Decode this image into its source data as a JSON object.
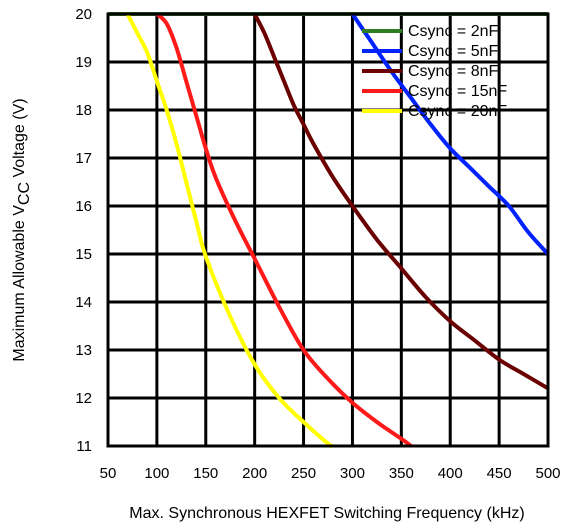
{
  "chart_data": {
    "type": "line",
    "title": "",
    "xlabel": "Max. Synchronous HEXFET Switching Frequency (kHz)",
    "ylabel_main": "Maximum Allowable V",
    "ylabel_sub": "CC",
    "ylabel_tail": " Voltage (V)",
    "xlim": [
      50,
      500
    ],
    "ylim": [
      11,
      20
    ],
    "xticks": [
      50,
      100,
      150,
      200,
      250,
      300,
      350,
      400,
      450,
      500
    ],
    "yticks": [
      11,
      12,
      13,
      14,
      15,
      16,
      17,
      18,
      19,
      20
    ],
    "grid": true,
    "legend_position": "top-right",
    "series": [
      {
        "name": "Csync = 2nF",
        "color": "#2e7d1f",
        "x": [
          50,
          100,
          200,
          300,
          400,
          500
        ],
        "y": [
          20,
          20,
          20,
          20,
          20,
          20
        ]
      },
      {
        "name": "Csync = 5nF",
        "color": "#0022ff",
        "x": [
          300,
          320,
          340,
          360,
          380,
          400,
          420,
          440,
          460,
          480,
          500
        ],
        "y": [
          20,
          19.4,
          18.8,
          18.25,
          17.7,
          17.2,
          16.8,
          16.4,
          16.0,
          15.45,
          15.0
        ]
      },
      {
        "name": "Csync = 8nF",
        "color": "#6b0000",
        "x": [
          200,
          210,
          220,
          230,
          240,
          250,
          260,
          280,
          300,
          325,
          350,
          375,
          400,
          425,
          450,
          475,
          500
        ],
        "y": [
          20,
          19.6,
          19.1,
          18.6,
          18.1,
          17.7,
          17.3,
          16.6,
          16.0,
          15.3,
          14.7,
          14.1,
          13.6,
          13.2,
          12.8,
          12.5,
          12.2
        ]
      },
      {
        "name": "Csync = 15nF",
        "color": "#ff1a1a",
        "x": [
          100,
          110,
          120,
          130,
          140,
          150,
          160,
          180,
          200,
          225,
          250,
          275,
          300,
          325,
          350,
          360
        ],
        "y": [
          20,
          19.8,
          19.3,
          18.6,
          17.9,
          17.2,
          16.6,
          15.7,
          14.9,
          13.9,
          13.0,
          12.4,
          11.9,
          11.5,
          11.15,
          11.0
        ]
      },
      {
        "name": "Csync = 20nF",
        "color": "#ffff00",
        "x": [
          70,
          80,
          90,
          100,
          110,
          120,
          130,
          140,
          150,
          175,
          200,
          225,
          250,
          275,
          280
        ],
        "y": [
          20,
          19.6,
          19.2,
          18.6,
          18.0,
          17.3,
          16.5,
          15.7,
          14.95,
          13.7,
          12.7,
          12.0,
          11.5,
          11.05,
          11.0
        ]
      }
    ]
  }
}
